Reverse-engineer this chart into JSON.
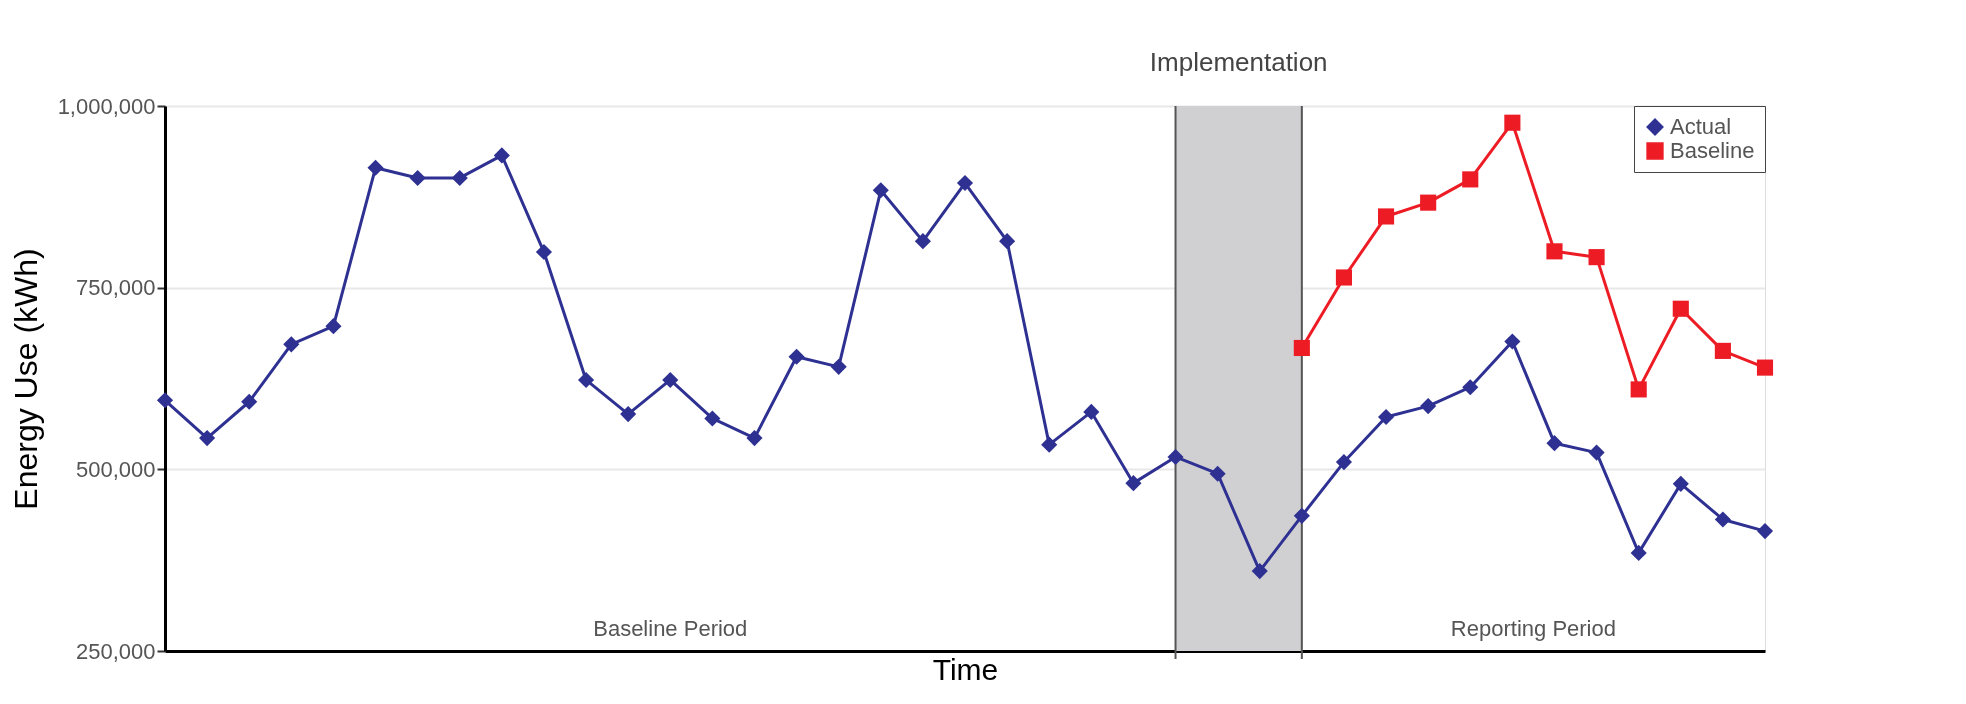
{
  "chart_data": {
    "type": "line",
    "xlabel": "Time",
    "ylabel": "Energy Use (kWh)",
    "categories": [
      null,
      null,
      null,
      null,
      null,
      null,
      null,
      null,
      null,
      null,
      null,
      null,
      null,
      null,
      null,
      null,
      null,
      null,
      null,
      null,
      null,
      null,
      null,
      null,
      null,
      null,
      null,
      null,
      null,
      null,
      null,
      null,
      null,
      null,
      null,
      null,
      null,
      null,
      null
    ],
    "ylim": [
      250000,
      1000000
    ],
    "yticks": [
      {
        "value": 250000,
        "label": "250,000"
      },
      {
        "value": 500000,
        "label": "500,000"
      },
      {
        "value": 750000,
        "label": "750,000"
      },
      {
        "value": 1000000,
        "label": "1,000,000"
      }
    ],
    "series": [
      {
        "name": "Actual",
        "color": "#2e3192",
        "marker": "diamond",
        "values": [
          595000,
          543000,
          593000,
          672000,
          697000,
          915000,
          901000,
          901000,
          932000,
          799000,
          623000,
          576000,
          623000,
          570000,
          543000,
          655000,
          641000,
          884000,
          814000,
          894000,
          814000,
          534000,
          579000,
          481000,
          517000,
          494000,
          360000,
          436000,
          510000,
          572000,
          587000,
          613000,
          676000,
          536000,
          523000,
          385000,
          480000,
          431000,
          415000
        ]
      },
      {
        "name": "Baseline",
        "color": "#ed1c24",
        "marker": "square",
        "values": [
          null,
          null,
          null,
          null,
          null,
          null,
          null,
          null,
          null,
          null,
          null,
          null,
          null,
          null,
          null,
          null,
          null,
          null,
          null,
          null,
          null,
          null,
          null,
          null,
          null,
          null,
          null,
          667000,
          764000,
          848000,
          867000,
          899000,
          977000,
          800000,
          792000,
          610000,
          721000,
          663000,
          640000
        ]
      }
    ],
    "annotations": [
      "Implementation",
      "Baseline Period",
      "Reporting Period"
    ],
    "grid": "y",
    "legend": "top right",
    "tick_labels": "y",
    "line_style": "solid"
  }
}
